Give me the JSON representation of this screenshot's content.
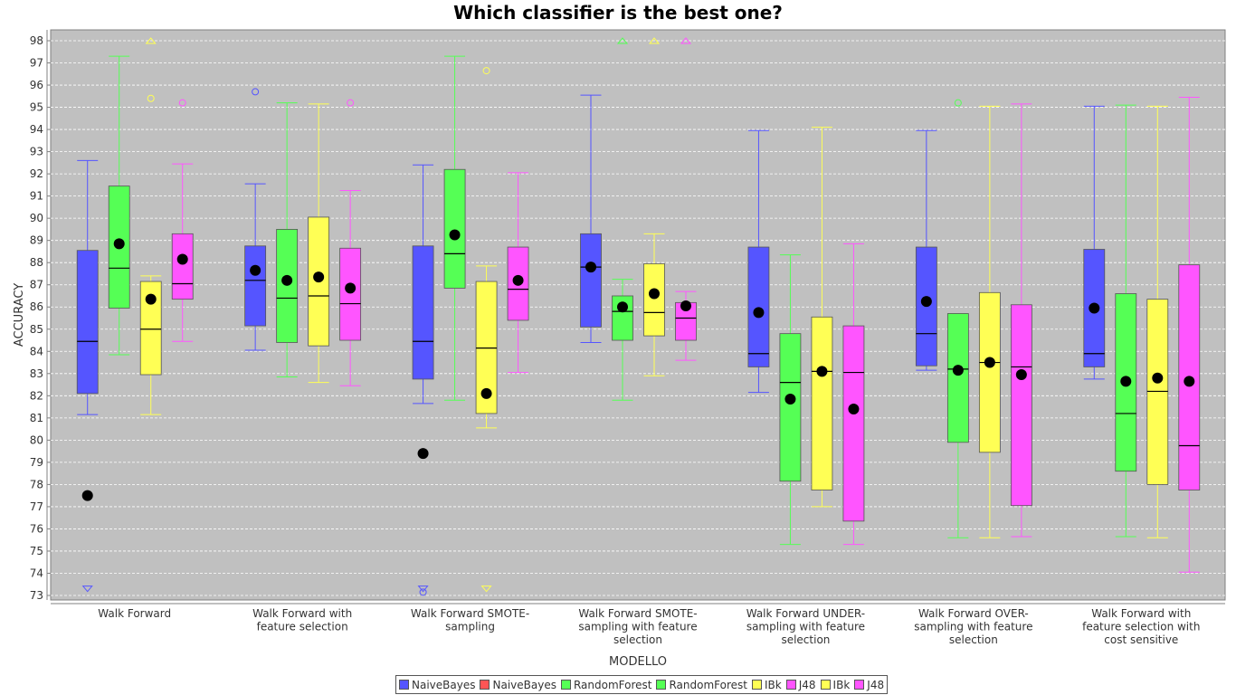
{
  "chart_data": {
    "type": "box",
    "title": "Which classifier is the best one?",
    "xlabel": "MODELLO",
    "ylabel": "ACCURACY",
    "ylim": [
      73,
      98
    ],
    "yticks": [
      73,
      74,
      75,
      76,
      77,
      78,
      79,
      80,
      81,
      82,
      83,
      84,
      85,
      86,
      87,
      88,
      89,
      90,
      91,
      92,
      93,
      94,
      95,
      96,
      97,
      98
    ],
    "grid": true,
    "legend_position": "bottom",
    "categories": [
      [
        "Walk Forward"
      ],
      [
        "Walk Forward  with",
        "feature selection"
      ],
      [
        "Walk Forward SMOTE-",
        "sampling"
      ],
      [
        "Walk Forward SMOTE-",
        "sampling with feature",
        "selection"
      ],
      [
        "Walk Forward UNDER-",
        "sampling with feature",
        "selection"
      ],
      [
        "Walk Forward OVER-",
        "sampling with feature",
        "selection"
      ],
      [
        "Walk Forward  with",
        "feature selection with",
        "cost sensitive"
      ]
    ],
    "legend": [
      {
        "label": "NaiveBayes",
        "color": "#5555ff"
      },
      {
        "label": "NaiveBayes",
        "color": "#ff5555"
      },
      {
        "label": "RandomForest",
        "color": "#55ff55"
      },
      {
        "label": "RandomForest",
        "color": "#55ff55"
      },
      {
        "label": "IBk",
        "color": "#ffff55"
      },
      {
        "label": "J48",
        "color": "#ff55ff"
      },
      {
        "label": "IBk",
        "color": "#ffff55"
      },
      {
        "label": "J48",
        "color": "#ff55ff"
      }
    ],
    "series": [
      {
        "name": "NaiveBayes",
        "color": "#5555ff",
        "boxes": [
          {
            "min": 81.15,
            "q1": 82.1,
            "median": 84.45,
            "q3": 88.55,
            "max": 92.6,
            "mean": 77.5,
            "outliers": [],
            "far_outliers": [
              {
                "y": 73.3,
                "dir": "down"
              }
            ]
          },
          {
            "min": 84.05,
            "q1": 85.15,
            "median": 87.2,
            "q3": 88.75,
            "max": 91.55,
            "mean": 87.65,
            "outliers": [
              95.7
            ],
            "far_outliers": []
          },
          {
            "min": 81.65,
            "q1": 82.75,
            "median": 84.45,
            "q3": 88.75,
            "max": 92.4,
            "mean": 79.4,
            "outliers": [
              73.15
            ],
            "far_outliers": [
              {
                "y": 73.3,
                "dir": "down"
              }
            ]
          },
          {
            "min": 84.4,
            "q1": 85.1,
            "median": 87.8,
            "q3": 89.3,
            "max": 95.55,
            "mean": 87.8,
            "outliers": [],
            "far_outliers": []
          },
          {
            "min": 82.15,
            "q1": 83.3,
            "median": 83.9,
            "q3": 88.7,
            "max": 93.95,
            "mean": 85.75,
            "outliers": [],
            "far_outliers": []
          },
          {
            "min": 83.15,
            "q1": 83.35,
            "median": 84.8,
            "q3": 88.7,
            "max": 93.95,
            "mean": 86.25,
            "outliers": [],
            "far_outliers": []
          },
          {
            "min": 82.75,
            "q1": 83.3,
            "median": 83.9,
            "q3": 88.6,
            "max": 95.05,
            "mean": 85.95,
            "outliers": [],
            "far_outliers": []
          }
        ]
      },
      {
        "name": "RandomForest",
        "color": "#55ff55",
        "boxes": [
          {
            "min": 83.85,
            "q1": 85.95,
            "median": 87.75,
            "q3": 91.45,
            "max": 97.3,
            "mean": 88.85,
            "outliers": [],
            "far_outliers": []
          },
          {
            "min": 82.85,
            "q1": 84.4,
            "median": 86.4,
            "q3": 89.5,
            "max": 95.2,
            "mean": 87.2,
            "outliers": [],
            "far_outliers": []
          },
          {
            "min": 81.8,
            "q1": 86.85,
            "median": 88.4,
            "q3": 92.2,
            "max": 97.3,
            "mean": 89.25,
            "outliers": [],
            "far_outliers": []
          },
          {
            "min": 81.8,
            "q1": 84.5,
            "median": 85.8,
            "q3": 86.5,
            "max": 87.25,
            "mean": 86.0,
            "outliers": [],
            "far_outliers": [
              {
                "y": 98.0,
                "dir": "up"
              }
            ]
          },
          {
            "min": 75.3,
            "q1": 78.15,
            "median": 82.6,
            "q3": 84.8,
            "max": 88.35,
            "mean": 81.85,
            "outliers": [],
            "far_outliers": []
          },
          {
            "min": 75.6,
            "q1": 79.9,
            "median": 83.2,
            "q3": 85.7,
            "max": 85.7,
            "mean": 83.15,
            "outliers": [
              95.2
            ],
            "far_outliers": []
          },
          {
            "min": 75.65,
            "q1": 78.6,
            "median": 81.2,
            "q3": 86.6,
            "max": 95.1,
            "mean": 82.65,
            "outliers": [],
            "far_outliers": []
          }
        ]
      },
      {
        "name": "IBk",
        "color": "#ffff55",
        "boxes": [
          {
            "min": 81.15,
            "q1": 82.95,
            "median": 85.0,
            "q3": 87.15,
            "max": 87.4,
            "mean": 86.35,
            "outliers": [
              95.4
            ],
            "far_outliers": [
              {
                "y": 98.0,
                "dir": "up"
              }
            ]
          },
          {
            "min": 82.6,
            "q1": 84.25,
            "median": 86.5,
            "q3": 90.05,
            "max": 95.15,
            "mean": 87.35,
            "outliers": [],
            "far_outliers": []
          },
          {
            "min": 80.55,
            "q1": 81.2,
            "median": 84.15,
            "q3": 87.15,
            "max": 87.85,
            "mean": 82.1,
            "outliers": [
              96.65
            ],
            "far_outliers": [
              {
                "y": 73.3,
                "dir": "down"
              }
            ]
          },
          {
            "min": 82.9,
            "q1": 84.7,
            "median": 85.75,
            "q3": 87.95,
            "max": 89.3,
            "mean": 86.6,
            "outliers": [],
            "far_outliers": [
              {
                "y": 98.0,
                "dir": "up"
              }
            ]
          },
          {
            "min": 77.0,
            "q1": 77.75,
            "median": 83.1,
            "q3": 85.55,
            "max": 94.1,
            "mean": 83.1,
            "outliers": [],
            "far_outliers": []
          },
          {
            "min": 75.6,
            "q1": 79.45,
            "median": 83.5,
            "q3": 86.65,
            "max": 95.05,
            "mean": 83.5,
            "outliers": [],
            "far_outliers": []
          },
          {
            "min": 75.6,
            "q1": 78.0,
            "median": 82.2,
            "q3": 86.35,
            "max": 95.05,
            "mean": 82.8,
            "outliers": [],
            "far_outliers": []
          }
        ]
      },
      {
        "name": "J48",
        "color": "#ff55ff",
        "boxes": [
          {
            "min": 84.45,
            "q1": 86.35,
            "median": 87.05,
            "q3": 89.3,
            "max": 92.45,
            "mean": 88.15,
            "outliers": [
              95.2
            ],
            "far_outliers": []
          },
          {
            "min": 82.45,
            "q1": 84.5,
            "median": 86.15,
            "q3": 88.65,
            "max": 91.25,
            "mean": 86.85,
            "outliers": [
              95.2
            ],
            "far_outliers": []
          },
          {
            "min": 83.05,
            "q1": 85.4,
            "median": 86.8,
            "q3": 88.7,
            "max": 92.05,
            "mean": 87.2,
            "outliers": [],
            "far_outliers": []
          },
          {
            "min": 83.6,
            "q1": 84.5,
            "median": 85.5,
            "q3": 86.2,
            "max": 86.7,
            "mean": 86.05,
            "outliers": [],
            "far_outliers": [
              {
                "y": 98.0,
                "dir": "up"
              }
            ]
          },
          {
            "min": 75.3,
            "q1": 76.35,
            "median": 83.05,
            "q3": 85.15,
            "max": 88.85,
            "mean": 81.4,
            "outliers": [],
            "far_outliers": []
          },
          {
            "min": 75.65,
            "q1": 77.05,
            "median": 83.3,
            "q3": 86.1,
            "max": 95.15,
            "mean": 82.95,
            "outliers": [],
            "far_outliers": []
          },
          {
            "min": 74.05,
            "q1": 77.75,
            "median": 79.75,
            "q3": 87.9,
            "max": 95.45,
            "mean": 82.65,
            "outliers": [],
            "far_outliers": []
          }
        ]
      }
    ]
  }
}
